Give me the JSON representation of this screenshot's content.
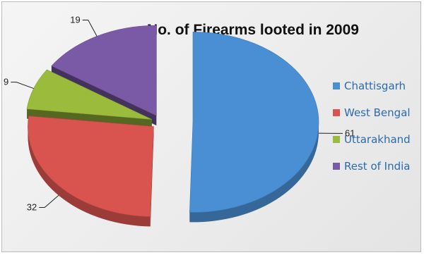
{
  "chart_data": {
    "type": "pie",
    "title": "No. of Firearms  looted in 2009",
    "categories": [
      "Chattisgarh",
      "West Bengal",
      "Uttarakhand",
      "Rest of India"
    ],
    "values": [
      61,
      32,
      9,
      19
    ],
    "colors": [
      "#4a8fd4",
      "#d9534f",
      "#9bbb3c",
      "#7a5aa6"
    ],
    "exploded": true,
    "legend_position": "right",
    "data_labels": [
      "61",
      "32",
      "9",
      "19"
    ]
  }
}
